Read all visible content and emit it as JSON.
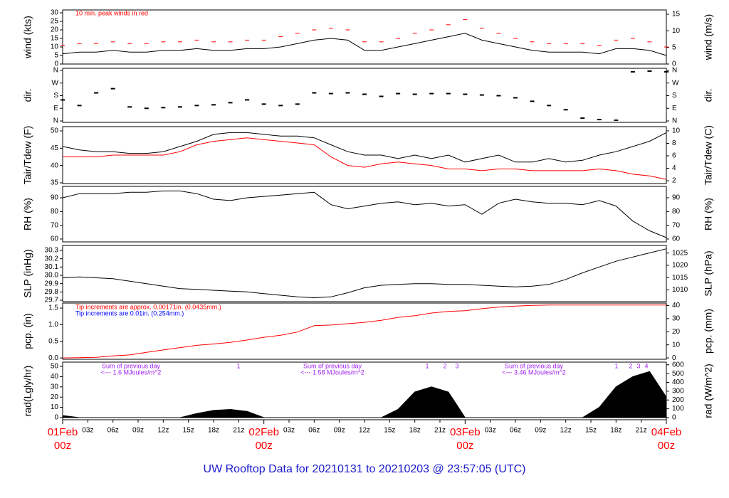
{
  "chart_data": {
    "type": "timeseries-panels",
    "title": "UW Rooftop Data for 20210131  to  20210203 @ 23:57:05  (UTC)",
    "x": [
      0,
      2,
      4,
      6,
      8,
      10,
      12,
      14,
      16,
      18,
      20,
      22,
      24,
      26,
      28,
      30,
      32,
      34,
      36,
      38,
      40,
      42,
      44,
      46,
      48,
      50,
      52,
      54,
      56,
      58,
      60,
      62,
      64,
      66,
      68,
      70,
      72
    ],
    "xlim": [
      0,
      72
    ],
    "xticks": [
      {
        "value": 3,
        "label": "03z"
      },
      {
        "value": 6,
        "label": "06z"
      },
      {
        "value": 9,
        "label": "09z"
      },
      {
        "value": 12,
        "label": "12z"
      },
      {
        "value": 15,
        "label": "15z"
      },
      {
        "value": 18,
        "label": "18z"
      },
      {
        "value": 21,
        "label": "21z"
      },
      {
        "value": 27,
        "label": "03z"
      },
      {
        "value": 30,
        "label": "06z"
      },
      {
        "value": 33,
        "label": "09z"
      },
      {
        "value": 36,
        "label": "12z"
      },
      {
        "value": 39,
        "label": "15z"
      },
      {
        "value": 42,
        "label": "18z"
      },
      {
        "value": 45,
        "label": "21z"
      },
      {
        "value": 51,
        "label": "03z"
      },
      {
        "value": 54,
        "label": "06z"
      },
      {
        "value": 57,
        "label": "09z"
      },
      {
        "value": 60,
        "label": "12z"
      },
      {
        "value": 63,
        "label": "15z"
      },
      {
        "value": 66,
        "label": "18z"
      },
      {
        "value": 69,
        "label": "21z"
      }
    ],
    "date_ticks": [
      {
        "value": 0,
        "label": "01Feb",
        "hour": "00z"
      },
      {
        "value": 24,
        "label": "02Feb",
        "hour": "00z"
      },
      {
        "value": 48,
        "label": "03Feb",
        "hour": "00z"
      },
      {
        "value": 72,
        "label": "04Feb",
        "hour": "00z"
      }
    ],
    "date_color": "#ff0000",
    "panels": [
      {
        "ylabel": "wind (kts)",
        "y2label": "wind (m/s)",
        "ylim": [
          0,
          31.67
        ],
        "yticks": [
          0,
          5,
          10,
          15,
          20,
          25,
          30
        ],
        "y2lim": [
          0,
          16.29
        ],
        "y2ticks": [
          0,
          5,
          10,
          15
        ],
        "note": "10 min. peak winds in red",
        "note_color": "#ff0000",
        "series": [
          {
            "type": "dash",
            "color": "#ff0000",
            "values": [
              11,
              12,
              12,
              13,
              12,
              12,
              13,
              13,
              14,
              13,
              13,
              14,
              14,
              16,
              18,
              20,
              21,
              20,
              13,
              13,
              15,
              18,
              20,
              23,
              26,
              21,
              18,
              15,
              13,
              12,
              12,
              12,
              11,
              14,
              15,
              13,
              10
            ]
          },
          {
            "type": "line",
            "color": "#000000",
            "values": [
              6,
              7,
              7,
              8,
              7,
              7,
              8,
              8,
              9,
              8,
              8,
              9,
              9,
              10,
              12,
              14,
              15,
              14,
              8,
              8,
              10,
              12,
              14,
              16,
              18,
              14,
              12,
              10,
              8,
              7,
              7,
              7,
              6,
              9,
              9,
              8,
              5
            ]
          }
        ]
      },
      {
        "ylabel": "dir.",
        "ylim": [
          -10,
          375
        ],
        "yticks": [
          {
            "value": 0,
            "label": "N"
          },
          {
            "value": 90,
            "label": "E"
          },
          {
            "value": 180,
            "label": "S"
          },
          {
            "value": 270,
            "label": "W"
          },
          {
            "value": 360,
            "label": "N"
          }
        ],
        "y2label": "dir.",
        "y2lim": [
          -10,
          375
        ],
        "y2ticks": [
          {
            "value": 0,
            "label": "N"
          },
          {
            "value": 90,
            "label": "E"
          },
          {
            "value": 180,
            "label": "S"
          },
          {
            "value": 270,
            "label": "W"
          },
          {
            "value": 360,
            "label": "N"
          }
        ],
        "series": [
          {
            "type": "dots",
            "color": "#000000",
            "values": [
              150,
              110,
              200,
              230,
              100,
              90,
              95,
              100,
              110,
              115,
              130,
              150,
              120,
              110,
              120,
              200,
              195,
              200,
              190,
              175,
              195,
              190,
              195,
              195,
              190,
              185,
              180,
              165,
              140,
              110,
              80,
              20,
              10,
              5,
              350,
              355,
              350
            ]
          }
        ]
      },
      {
        "ylabel": "Tair/Tdew (F)",
        "y2label": "Tair/Tdew (C)",
        "ylim": [
          34.79,
          51.23
        ],
        "yticks": [
          35,
          40,
          45,
          50
        ],
        "y2lim": [
          1.55,
          10.68
        ],
        "y2ticks": [
          2,
          4,
          6,
          8,
          10
        ],
        "series": [
          {
            "type": "line",
            "color": "#ff0000",
            "values": [
              42.5,
              42.5,
              42.5,
              43,
              43,
              43,
              43,
              44,
              46,
              47,
              47.5,
              48,
              47.5,
              47,
              46.5,
              46,
              42.5,
              40,
              39.5,
              40.5,
              41,
              40.5,
              40,
              39,
              39,
              38.5,
              39,
              39,
              38.5,
              38.5,
              38.5,
              38.5,
              39,
              38.5,
              37.5,
              37,
              36
            ]
          },
          {
            "type": "line",
            "color": "#000000",
            "values": [
              45.5,
              44.5,
              44,
              44,
              43.5,
              43.5,
              44,
              45.5,
              47,
              49,
              49.5,
              49.5,
              49,
              48.5,
              48.5,
              48,
              46,
              44,
              43,
              43,
              42,
              43,
              42,
              43,
              41,
              42,
              43,
              41,
              41,
              42,
              41,
              41.5,
              43,
              44,
              45.5,
              47,
              49.5
            ]
          }
        ]
      },
      {
        "ylabel": "RH (%)",
        "y2label": "RH (%)",
        "ylim": [
          57.9,
          98.3
        ],
        "yticks": [
          60,
          70,
          80,
          90
        ],
        "y2lim": [
          57.9,
          98.3
        ],
        "y2ticks": [
          60,
          70,
          80,
          90
        ],
        "series": [
          {
            "type": "line",
            "color": "#000000",
            "values": [
              90,
              93,
              93,
              93,
              94,
              94,
              95,
              95,
              93,
              89,
              88,
              90,
              91,
              92,
              93,
              94,
              85,
              82,
              84,
              86,
              87,
              85,
              86,
              84,
              85,
              78,
              86,
              89,
              87,
              86,
              86,
              85,
              88,
              84,
              73,
              66,
              61
            ]
          }
        ]
      },
      {
        "ylabel": "SLP (inHg)",
        "y2label": "SLP (hPa)",
        "ylim": [
          29.683,
          30.36
        ],
        "yticks": [
          {
            "value": 29.7,
            "label": "29.7"
          },
          {
            "value": 29.8,
            "label": "29.8"
          },
          {
            "value": 29.9,
            "label": "29.9"
          },
          {
            "value": 30.0,
            "label": "30.0"
          },
          {
            "value": 30.1,
            "label": "30.1"
          },
          {
            "value": 30.2,
            "label": "30.2"
          },
          {
            "value": 30.3,
            "label": "30.3"
          }
        ],
        "y2lim": [
          1005.2,
          1028.1
        ],
        "y2ticks": [
          1010,
          1015,
          1020,
          1025
        ],
        "series": [
          {
            "type": "line",
            "color": "#000000",
            "values": [
              29.97,
              29.98,
              29.97,
              29.96,
              29.93,
              29.9,
              29.87,
              29.84,
              29.83,
              29.82,
              29.81,
              29.8,
              29.78,
              29.76,
              29.74,
              29.73,
              29.74,
              29.79,
              29.85,
              29.88,
              29.89,
              29.9,
              29.9,
              29.89,
              29.89,
              29.88,
              29.87,
              29.86,
              29.87,
              29.89,
              29.95,
              30.03,
              30.1,
              30.17,
              30.22,
              30.27,
              30.32
            ]
          }
        ]
      },
      {
        "ylabel": "pcp. (in)",
        "y2label": "pcp. (mm)",
        "ylim": [
          -0.04,
          1.65
        ],
        "yticks": [
          {
            "value": 0,
            "label": "0.0"
          },
          {
            "value": 0.5,
            "label": "0.5"
          },
          {
            "value": 1,
            "label": "1.0"
          },
          {
            "value": 1.5,
            "label": "1.5"
          }
        ],
        "y2lim": [
          -1.02,
          41.9
        ],
        "y2ticks": [
          0,
          10,
          20,
          30,
          40
        ],
        "notes": [
          {
            "text": "Tip increments are approx. 0.00171in. (0.0435mm.)",
            "color": "#ff0000"
          },
          {
            "text": "Tip increments are 0.01in. (0.254mm.)",
            "color": "#0000ff"
          }
        ],
        "series": [
          {
            "type": "line",
            "color": "#ff0000",
            "values": [
              0,
              0.01,
              0.02,
              0.06,
              0.09,
              0.17,
              0.24,
              0.31,
              0.38,
              0.42,
              0.47,
              0.54,
              0.62,
              0.68,
              0.78,
              0.97,
              0.99,
              1.03,
              1.07,
              1.13,
              1.22,
              1.27,
              1.35,
              1.4,
              1.42,
              1.48,
              1.53,
              1.56,
              1.58,
              1.59,
              1.59,
              1.59,
              1.59,
              1.59,
              1.59,
              1.59,
              1.59
            ]
          }
        ]
      },
      {
        "ylabel": "rad(Lgly/hr)",
        "y2label": "rad (W/m^2)",
        "ylim": [
          -2.1,
          54.2
        ],
        "yticks": [
          0,
          10,
          20,
          30,
          40,
          50
        ],
        "y2lim": [
          -24.4,
          630.3
        ],
        "y2ticks": [
          0,
          100,
          200,
          300,
          400,
          500,
          600
        ],
        "day_sums": [
          [
            "Sum of previous day",
            "<--- 1.6 MJoules/m^2"
          ],
          [
            "Sum of previous day",
            "<--- 1.58 MJoules/m^2"
          ],
          [
            "Sum of previous day",
            "<--- 3.46 MJoules/m^2"
          ]
        ],
        "markers": [
          "1",
          "1",
          "2",
          "3",
          "1",
          "2",
          "3",
          "4"
        ],
        "annotation_color": "#a020f0",
        "series": [
          {
            "type": "area",
            "color": "#000000",
            "values": [
              2,
              0,
              0,
              0,
              0,
              0,
              0,
              0,
              4,
              7,
              8,
              6,
              0,
              0,
              0,
              0,
              0,
              0,
              0,
              0,
              8,
              25,
              30,
              25,
              0,
              0,
              0,
              0,
              0,
              0,
              0,
              0,
              10,
              30,
              40,
              45,
              20
            ]
          }
        ]
      }
    ]
  }
}
